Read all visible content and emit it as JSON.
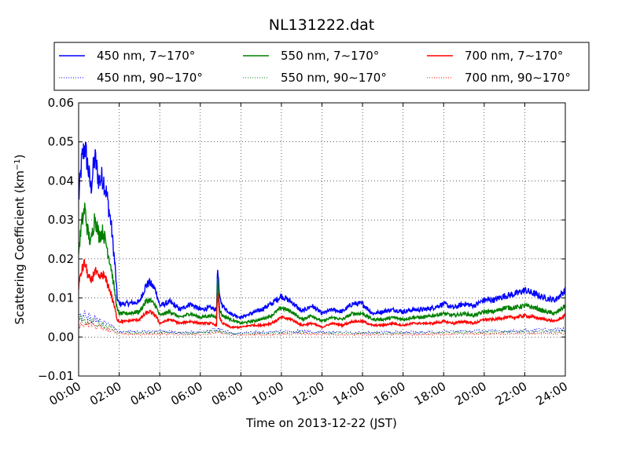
{
  "chart_data": {
    "type": "line",
    "title": "NL131222.dat",
    "xlabel": "Time on 2013-12-22 (JST)",
    "ylabel": "Scattering Coefficient (km",
    "ylabel_exponent": "−1",
    "ylabel_suffix": ")",
    "xlim_hours": [
      0,
      24
    ],
    "ylim": [
      -0.01,
      0.06
    ],
    "x_ticks": [
      {
        "hour": 0,
        "label": "00:00"
      },
      {
        "hour": 2,
        "label": "02:00"
      },
      {
        "hour": 4,
        "label": "04:00"
      },
      {
        "hour": 6,
        "label": "06:00"
      },
      {
        "hour": 8,
        "label": "08:00"
      },
      {
        "hour": 10,
        "label": "10:00"
      },
      {
        "hour": 12,
        "label": "12:00"
      },
      {
        "hour": 14,
        "label": "14:00"
      },
      {
        "hour": 16,
        "label": "16:00"
      },
      {
        "hour": 18,
        "label": "18:00"
      },
      {
        "hour": 20,
        "label": "20:00"
      },
      {
        "hour": 22,
        "label": "22:00"
      },
      {
        "hour": 24,
        "label": "24:00"
      }
    ],
    "y_ticks": [
      {
        "value": -0.01,
        "label": "−0.01"
      },
      {
        "value": 0.0,
        "label": "0.00"
      },
      {
        "value": 0.01,
        "label": "0.01"
      },
      {
        "value": 0.02,
        "label": "0.02"
      },
      {
        "value": 0.03,
        "label": "0.03"
      },
      {
        "value": 0.04,
        "label": "0.04"
      },
      {
        "value": 0.05,
        "label": "0.05"
      },
      {
        "value": 0.06,
        "label": "0.06"
      }
    ],
    "grid": true,
    "legend_position": "top",
    "series": [
      {
        "name": "450 nm, 7∼170°",
        "color": "#0000ff",
        "style": "solid",
        "x_hours": [
          0,
          0.15,
          0.3,
          0.45,
          0.6,
          0.8,
          1.0,
          1.2,
          1.4,
          1.6,
          1.8,
          1.9,
          2.0,
          2.3,
          3.0,
          3.3,
          3.5,
          3.8,
          4.0,
          4.5,
          5.0,
          5.5,
          6.0,
          6.5,
          6.8,
          6.85,
          6.95,
          7.1,
          7.5,
          8.0,
          8.5,
          9.0,
          9.5,
          10.0,
          10.5,
          11.0,
          11.5,
          12.0,
          12.5,
          13.0,
          13.5,
          14.0,
          14.5,
          15.0,
          15.5,
          16.0,
          16.5,
          17.0,
          17.5,
          18.0,
          18.5,
          19.0,
          19.5,
          20.0,
          20.5,
          21.0,
          21.5,
          22.0,
          22.5,
          23.0,
          23.5,
          24.0
        ],
        "values": [
          0.035,
          0.045,
          0.049,
          0.044,
          0.038,
          0.046,
          0.04,
          0.041,
          0.036,
          0.029,
          0.018,
          0.01,
          0.0085,
          0.0085,
          0.009,
          0.013,
          0.014,
          0.012,
          0.008,
          0.009,
          0.007,
          0.0085,
          0.007,
          0.0075,
          0.007,
          0.018,
          0.01,
          0.008,
          0.006,
          0.005,
          0.006,
          0.007,
          0.0085,
          0.0105,
          0.009,
          0.0065,
          0.008,
          0.006,
          0.007,
          0.0065,
          0.0085,
          0.0085,
          0.006,
          0.0065,
          0.007,
          0.0065,
          0.007,
          0.007,
          0.0075,
          0.0085,
          0.0075,
          0.0085,
          0.008,
          0.0095,
          0.0095,
          0.0105,
          0.011,
          0.012,
          0.011,
          0.01,
          0.0095,
          0.012
        ]
      },
      {
        "name": "550 nm, 7∼170°",
        "color": "#008000",
        "style": "solid",
        "x_hours": [
          0,
          0.15,
          0.3,
          0.45,
          0.6,
          0.8,
          1.0,
          1.2,
          1.4,
          1.6,
          1.8,
          1.9,
          2.0,
          2.3,
          3.0,
          3.3,
          3.5,
          3.8,
          4.0,
          4.5,
          5.0,
          5.5,
          6.0,
          6.5,
          6.8,
          6.85,
          6.95,
          7.1,
          7.5,
          8.0,
          8.5,
          9.0,
          9.5,
          10.0,
          10.5,
          11.0,
          11.5,
          12.0,
          12.5,
          13.0,
          13.5,
          14.0,
          14.5,
          15.0,
          15.5,
          16.0,
          16.5,
          17.0,
          17.5,
          18.0,
          18.5,
          19.0,
          19.5,
          20.0,
          20.5,
          21.0,
          21.5,
          22.0,
          22.5,
          23.0,
          23.5,
          24.0
        ],
        "values": [
          0.022,
          0.029,
          0.033,
          0.027,
          0.024,
          0.031,
          0.026,
          0.027,
          0.023,
          0.018,
          0.011,
          0.007,
          0.006,
          0.006,
          0.0065,
          0.009,
          0.0095,
          0.008,
          0.0055,
          0.0065,
          0.005,
          0.006,
          0.005,
          0.0055,
          0.005,
          0.016,
          0.007,
          0.0055,
          0.0045,
          0.0035,
          0.004,
          0.0045,
          0.0055,
          0.0075,
          0.0065,
          0.0045,
          0.0055,
          0.004,
          0.005,
          0.0045,
          0.006,
          0.006,
          0.0045,
          0.0045,
          0.005,
          0.0045,
          0.005,
          0.005,
          0.0055,
          0.006,
          0.0055,
          0.006,
          0.0055,
          0.0065,
          0.0065,
          0.0075,
          0.0075,
          0.008,
          0.0075,
          0.0065,
          0.006,
          0.008
        ]
      },
      {
        "name": "700 nm, 7∼170°",
        "color": "#ff0000",
        "style": "solid",
        "x_hours": [
          0,
          0.15,
          0.3,
          0.45,
          0.6,
          0.8,
          1.0,
          1.2,
          1.4,
          1.6,
          1.8,
          1.9,
          2.0,
          2.3,
          3.0,
          3.3,
          3.5,
          3.8,
          4.0,
          4.5,
          5.0,
          5.5,
          6.0,
          6.5,
          6.8,
          6.85,
          6.95,
          7.1,
          7.5,
          8.0,
          8.5,
          9.0,
          9.5,
          10.0,
          10.5,
          11.0,
          11.5,
          12.0,
          12.5,
          13.0,
          13.5,
          14.0,
          14.5,
          15.0,
          15.5,
          16.0,
          16.5,
          17.0,
          17.5,
          18.0,
          18.5,
          19.0,
          19.5,
          20.0,
          20.5,
          21.0,
          21.5,
          22.0,
          22.5,
          23.0,
          23.5,
          24.0
        ],
        "values": [
          0.013,
          0.017,
          0.019,
          0.016,
          0.014,
          0.017,
          0.015,
          0.016,
          0.014,
          0.011,
          0.007,
          0.0045,
          0.004,
          0.004,
          0.0045,
          0.006,
          0.0065,
          0.0055,
          0.0035,
          0.0045,
          0.0035,
          0.004,
          0.0035,
          0.0035,
          0.003,
          0.012,
          0.005,
          0.0035,
          0.0025,
          0.0025,
          0.003,
          0.003,
          0.0035,
          0.005,
          0.0045,
          0.003,
          0.0035,
          0.0025,
          0.0035,
          0.003,
          0.004,
          0.004,
          0.003,
          0.003,
          0.0035,
          0.003,
          0.0035,
          0.0035,
          0.0035,
          0.004,
          0.0035,
          0.004,
          0.0035,
          0.0045,
          0.0045,
          0.005,
          0.005,
          0.0055,
          0.005,
          0.0045,
          0.004,
          0.0055
        ]
      },
      {
        "name": "450 nm, 90∼170°",
        "color": "#0000ff",
        "style": "dotted",
        "x_hours": [
          0,
          0.5,
          1.0,
          1.5,
          2.0,
          3.0,
          4.0,
          5.0,
          6.0,
          6.9,
          7.5,
          9.0,
          11.0,
          13.0,
          15.0,
          17.0,
          19.0,
          21.0,
          23.0,
          24.0
        ],
        "values": [
          0.006,
          0.005,
          0.004,
          0.003,
          0.0015,
          0.0012,
          0.0015,
          0.0012,
          0.0012,
          0.002,
          0.001,
          0.0012,
          0.0015,
          0.0012,
          0.0012,
          0.0012,
          0.0015,
          0.0015,
          0.0018,
          0.0018
        ]
      },
      {
        "name": "550 nm, 90∼170°",
        "color": "#008000",
        "style": "dotted",
        "x_hours": [
          0,
          0.5,
          1.0,
          1.5,
          2.0,
          3.0,
          4.0,
          5.0,
          6.0,
          6.9,
          7.5,
          9.0,
          11.0,
          13.0,
          15.0,
          17.0,
          19.0,
          21.0,
          23.0,
          24.0
        ],
        "values": [
          0.0045,
          0.004,
          0.0035,
          0.0025,
          0.0012,
          0.001,
          0.0012,
          0.001,
          0.001,
          0.0016,
          0.0008,
          0.001,
          0.0012,
          0.001,
          0.001,
          0.001,
          0.0012,
          0.0012,
          0.0014,
          0.0014
        ]
      },
      {
        "name": "700 nm, 90∼170°",
        "color": "#ff0000",
        "style": "dotted",
        "x_hours": [
          0,
          0.5,
          1.0,
          1.5,
          2.0,
          3.0,
          4.0,
          5.0,
          6.0,
          6.9,
          7.5,
          9.0,
          11.0,
          13.0,
          15.0,
          17.0,
          19.0,
          21.0,
          23.0,
          24.0
        ],
        "values": [
          0.003,
          0.003,
          0.0025,
          0.002,
          0.0008,
          0.0006,
          0.0008,
          0.0006,
          0.0006,
          0.0012,
          0.0005,
          0.0006,
          0.0008,
          0.0006,
          0.0006,
          0.0006,
          0.0008,
          0.0008,
          0.0009,
          0.0009
        ]
      }
    ],
    "legend_order": [
      0,
      1,
      2,
      3,
      4,
      5
    ]
  }
}
